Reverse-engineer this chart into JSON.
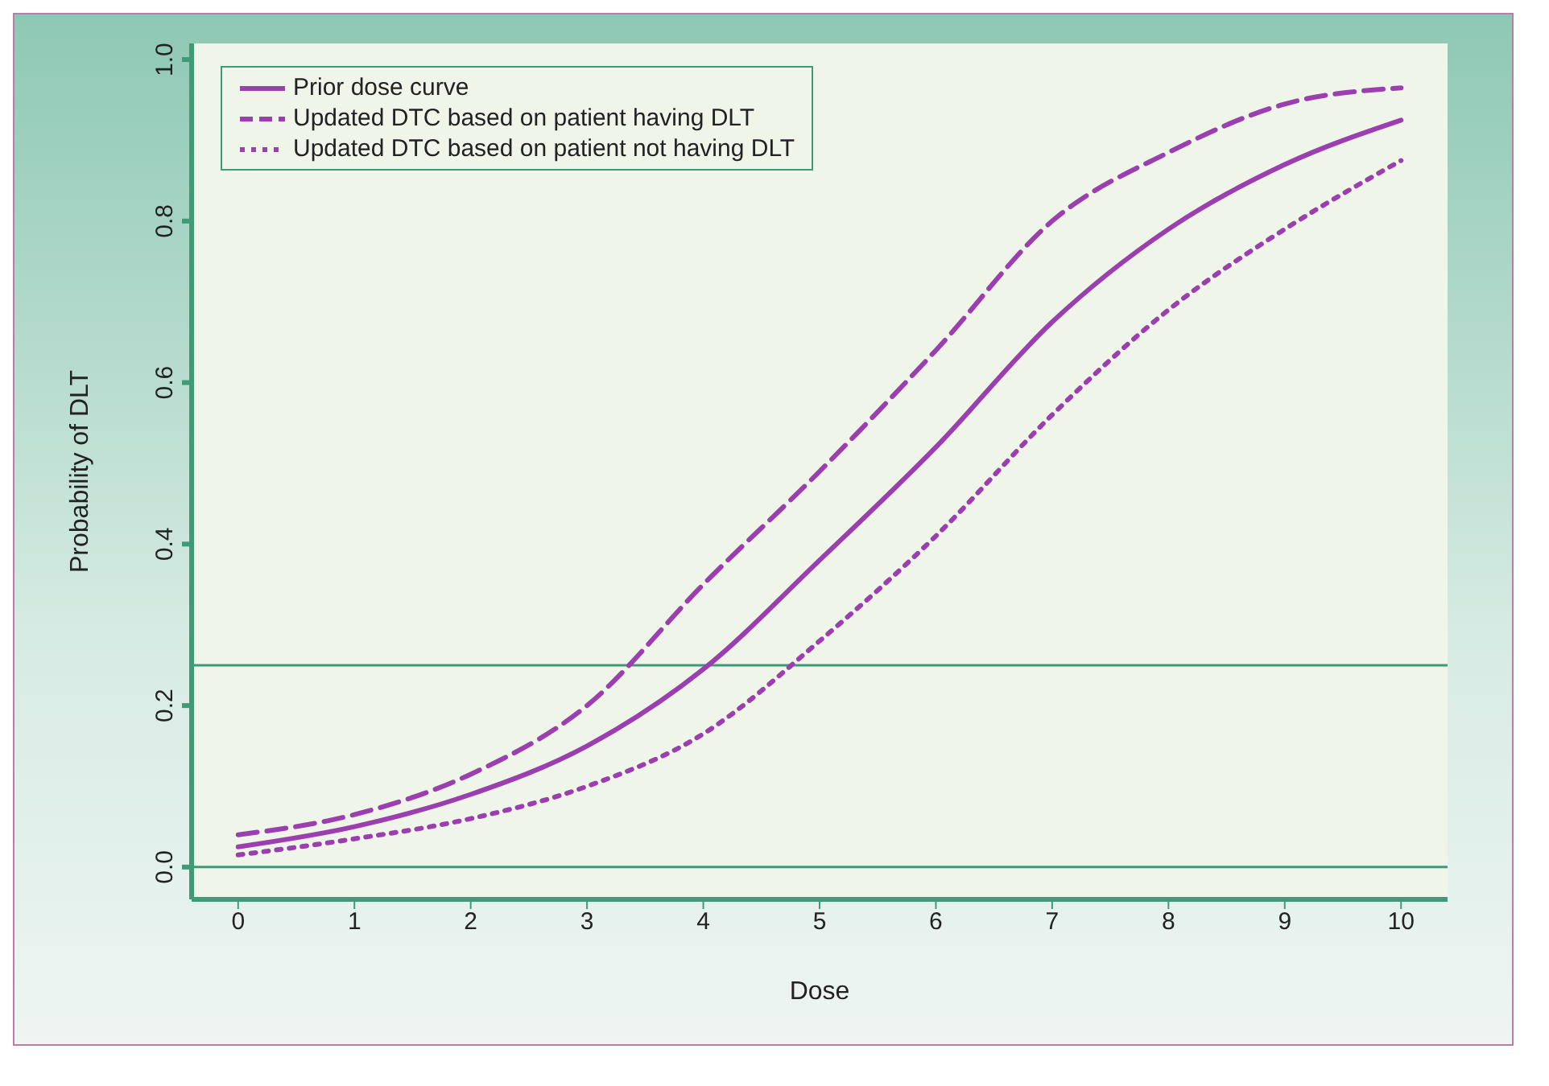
{
  "chart_data": {
    "type": "line",
    "xlabel": "Dose",
    "ylabel": "Probability of DLT",
    "x": [
      0,
      1,
      2,
      3,
      4,
      5,
      6,
      7,
      8,
      9,
      10
    ],
    "series": [
      {
        "name": "Prior dose curve",
        "color": "#9b3fb0",
        "line_style": "solid",
        "values": [
          0.025,
          0.05,
          0.09,
          0.15,
          0.245,
          0.38,
          0.52,
          0.675,
          0.79,
          0.87,
          0.925
        ]
      },
      {
        "name": "Updated DTC based on patient having DLT",
        "color": "#9b3fb0",
        "line_style": "dashed",
        "values": [
          0.04,
          0.065,
          0.115,
          0.2,
          0.35,
          0.49,
          0.64,
          0.8,
          0.885,
          0.945,
          0.965
        ]
      },
      {
        "name": "Updated DTC based on patient not having DLT",
        "color": "#9b3fb0",
        "line_style": "dotted",
        "values": [
          0.015,
          0.035,
          0.06,
          0.1,
          0.165,
          0.28,
          0.41,
          0.56,
          0.69,
          0.79,
          0.875
        ]
      }
    ],
    "xlim": [
      -0.4,
      10.4
    ],
    "xticks": [
      0,
      1,
      2,
      3,
      4,
      5,
      6,
      7,
      8,
      9,
      10
    ],
    "ylim": [
      -0.04,
      1.02
    ],
    "yticks": [
      {
        "value": 0,
        "label": "0.0"
      },
      {
        "value": 0.2,
        "label": "0.2"
      },
      {
        "value": 0.4,
        "label": "0.4"
      },
      {
        "value": 0.6,
        "label": "0.6"
      },
      {
        "value": 0.8,
        "label": "0.8"
      },
      {
        "value": 1,
        "label": "1.0"
      }
    ],
    "ref_lines": [
      {
        "axis": "y",
        "value": 0,
        "color": "#3f9a78"
      },
      {
        "axis": "y",
        "value": 0.25,
        "color": "#3f9a78"
      }
    ],
    "grid": false,
    "legend": "top left",
    "marker": "none"
  }
}
